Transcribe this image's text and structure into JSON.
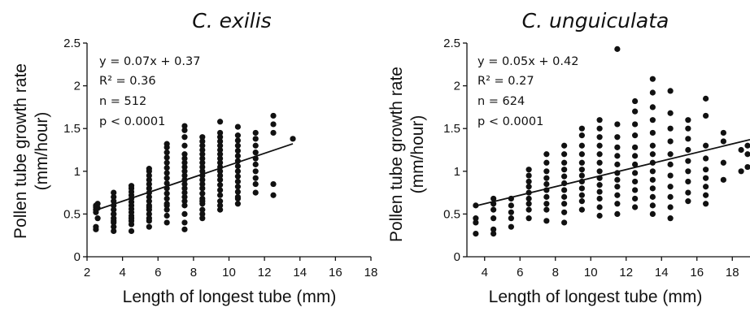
{
  "chart_data": [
    {
      "type": "scatter",
      "title": "C. exilis",
      "xlabel": "Length of longest tube (mm)",
      "ylabel_line1": "Pollen tube growth rate",
      "ylabel_line2": "(mm/hour)",
      "xlim": [
        2,
        18
      ],
      "ylim": [
        0,
        2.5
      ],
      "xticks": [
        2,
        4,
        6,
        8,
        10,
        12,
        14,
        16,
        18
      ],
      "yticks": [
        0,
        0.5,
        1,
        1.5,
        2,
        2.5
      ],
      "xtick_labels": [
        "2",
        "4",
        "6",
        "8",
        "10",
        "12",
        "14",
        "16",
        "18"
      ],
      "ytick_labels": [
        "0",
        "0.5",
        "1",
        "1.5",
        "2",
        "2.5"
      ],
      "annotations": [
        "y = 0.07x  + 0.37",
        "R² = 0.36",
        "n = 512",
        "p < 0.0001"
      ],
      "fit": {
        "slope": 0.07,
        "intercept": 0.37,
        "x_range": [
          2.5,
          13.6
        ]
      },
      "points_summary": {
        "x_min": 2.5,
        "x_max": 13.6,
        "y_min": 0.3,
        "y_max": 1.65
      },
      "series": [
        {
          "x": [
            2.5,
            2.5,
            2.5,
            2.5,
            2.5,
            2.5,
            2.6,
            2.6,
            2.6,
            3.5,
            3.5,
            3.5,
            3.5,
            3.5,
            3.5,
            3.5,
            3.5,
            3.5,
            3.5,
            3.5,
            3.5,
            4.5,
            4.5,
            4.5,
            4.5,
            4.5,
            4.5,
            4.5,
            4.5,
            4.5,
            4.5,
            4.5,
            4.5,
            4.5,
            4.5,
            5.5,
            5.5,
            5.5,
            5.5,
            5.5,
            5.5,
            5.5,
            5.5,
            5.5,
            5.5,
            5.5,
            5.5,
            5.5,
            5.5,
            5.5,
            5.5,
            6.5,
            6.5,
            6.5,
            6.5,
            6.5,
            6.5,
            6.5,
            6.5,
            6.5,
            6.5,
            6.5,
            6.5,
            6.5,
            6.5,
            6.5,
            6.5,
            6.5,
            7.5,
            7.5,
            7.5,
            7.5,
            7.5,
            7.5,
            7.5,
            7.5,
            7.5,
            7.5,
            7.5,
            7.5,
            7.5,
            7.5,
            7.5,
            7.5,
            7.5,
            7.5,
            7.5,
            7.5,
            8.5,
            8.5,
            8.5,
            8.5,
            8.5,
            8.5,
            8.5,
            8.5,
            8.5,
            8.5,
            8.5,
            8.5,
            8.5,
            8.5,
            8.5,
            8.5,
            8.5,
            8.5,
            8.5,
            8.5,
            9.5,
            9.5,
            9.5,
            9.5,
            9.5,
            9.5,
            9.5,
            9.5,
            9.5,
            9.5,
            9.5,
            9.5,
            9.5,
            9.5,
            9.5,
            9.5,
            9.5,
            9.5,
            9.5,
            10.5,
            10.5,
            10.5,
            10.5,
            10.5,
            10.5,
            10.5,
            10.5,
            10.5,
            10.5,
            10.5,
            10.5,
            10.5,
            10.5,
            10.5,
            10.5,
            11.5,
            11.5,
            11.5,
            11.5,
            11.5,
            11.5,
            11.5,
            11.5,
            11.5,
            11.5,
            12.5,
            12.5,
            12.5,
            12.5,
            12.5,
            13.6
          ],
          "y": [
            0.32,
            0.35,
            0.52,
            0.55,
            0.58,
            0.6,
            0.62,
            0.45,
            0.57,
            0.3,
            0.35,
            0.4,
            0.45,
            0.5,
            0.55,
            0.6,
            0.65,
            0.7,
            0.75,
            0.5,
            0.42,
            0.3,
            0.38,
            0.42,
            0.48,
            0.52,
            0.56,
            0.6,
            0.64,
            0.68,
            0.72,
            0.76,
            0.8,
            0.83,
            0.45,
            0.35,
            0.42,
            0.5,
            0.55,
            0.6,
            0.65,
            0.7,
            0.75,
            0.8,
            0.85,
            0.9,
            0.95,
            1.0,
            1.03,
            0.45,
            0.58,
            0.4,
            0.48,
            0.55,
            0.62,
            0.68,
            0.74,
            0.8,
            0.86,
            0.92,
            0.98,
            1.04,
            1.1,
            1.16,
            1.22,
            1.28,
            1.32,
            0.6,
            0.32,
            0.4,
            0.5,
            0.6,
            0.65,
            0.7,
            0.75,
            0.8,
            0.85,
            0.9,
            0.95,
            1.0,
            1.05,
            1.1,
            1.15,
            1.2,
            1.3,
            1.4,
            1.48,
            1.53,
            0.45,
            0.55,
            0.62,
            0.68,
            0.74,
            0.8,
            0.85,
            0.9,
            0.95,
            1.0,
            1.05,
            1.1,
            1.15,
            1.2,
            1.25,
            1.3,
            1.35,
            1.4,
            0.5,
            0.65,
            0.55,
            0.65,
            0.72,
            0.78,
            0.84,
            0.9,
            0.95,
            1.0,
            1.05,
            1.1,
            1.15,
            1.2,
            1.25,
            1.3,
            1.35,
            1.4,
            1.45,
            1.58,
            0.6,
            0.62,
            0.7,
            0.76,
            0.82,
            0.88,
            0.94,
            1.0,
            1.06,
            1.12,
            1.18,
            1.24,
            1.3,
            1.36,
            1.42,
            1.52,
            0.68,
            0.75,
            0.85,
            0.92,
            1.0,
            1.08,
            1.15,
            1.22,
            1.3,
            1.38,
            1.45,
            0.72,
            0.85,
            1.45,
            1.55,
            1.65,
            1.38
          ]
        }
      ]
    },
    {
      "type": "scatter",
      "title": "C. unguiculata",
      "xlabel": "Length of longest tube (mm)",
      "ylabel_line1": "Pollen tube growth rate",
      "ylabel_line2": "(mm/hour)",
      "xlim": [
        3,
        19
      ],
      "ylim": [
        0,
        2.5
      ],
      "xticks": [
        4,
        6,
        8,
        10,
        12,
        14,
        16,
        18
      ],
      "yticks": [
        0,
        0.5,
        1,
        1.5,
        2,
        2.5
      ],
      "xtick_labels": [
        "4",
        "6",
        "8",
        "10",
        "12",
        "14",
        "16",
        "18"
      ],
      "ytick_labels": [
        "0",
        "0.5",
        "1",
        "1.5",
        "2",
        "2.5"
      ],
      "annotations": [
        "y = 0.05x + 0.42",
        "R² = 0.27",
        "n = 624",
        "p < 0.0001"
      ],
      "fit": {
        "slope": 0.05,
        "intercept": 0.42,
        "x_range": [
          3.5,
          19
        ]
      },
      "points_summary": {
        "x_min": 3.5,
        "x_max": 19,
        "y_min": 0.27,
        "y_max": 2.43
      },
      "series": [
        {
          "x": [
            3.5,
            3.5,
            3.5,
            3.5,
            4.5,
            4.5,
            4.5,
            4.5,
            4.5,
            4.5,
            5.5,
            5.5,
            5.5,
            5.5,
            5.5,
            6.5,
            6.5,
            6.5,
            6.5,
            6.5,
            6.5,
            6.5,
            6.5,
            6.5,
            7.5,
            7.5,
            7.5,
            7.5,
            7.5,
            7.5,
            7.5,
            7.5,
            7.5,
            7.5,
            8.5,
            8.5,
            8.5,
            8.5,
            8.5,
            8.5,
            8.5,
            8.5,
            8.5,
            8.5,
            8.5,
            9.5,
            9.5,
            9.5,
            9.5,
            9.5,
            9.5,
            9.5,
            9.5,
            9.5,
            9.5,
            9.5,
            9.5,
            10.5,
            10.5,
            10.5,
            10.5,
            10.5,
            10.5,
            10.5,
            10.5,
            10.5,
            10.5,
            10.5,
            10.5,
            10.5,
            11.5,
            11.5,
            11.5,
            11.5,
            11.5,
            11.5,
            11.5,
            11.5,
            11.5,
            11.5,
            11.5,
            11.5,
            12.5,
            12.5,
            12.5,
            12.5,
            12.5,
            12.5,
            12.5,
            12.5,
            12.5,
            12.5,
            12.5,
            12.5,
            13.5,
            13.5,
            13.5,
            13.5,
            13.5,
            13.5,
            13.5,
            13.5,
            13.5,
            13.5,
            13.5,
            13.5,
            13.5,
            13.5,
            14.5,
            14.5,
            14.5,
            14.5,
            14.5,
            14.5,
            14.5,
            14.5,
            14.5,
            14.5,
            14.5,
            15.5,
            15.5,
            15.5,
            15.5,
            15.5,
            15.5,
            15.5,
            15.5,
            15.5,
            16.5,
            16.5,
            16.5,
            16.5,
            16.5,
            16.5,
            16.5,
            16.5,
            16.5,
            17.5,
            17.5,
            17.5,
            17.5,
            18.5,
            18.5,
            19.0,
            19.0,
            19.0
          ],
          "y": [
            0.27,
            0.4,
            0.45,
            0.6,
            0.27,
            0.32,
            0.45,
            0.55,
            0.62,
            0.68,
            0.35,
            0.45,
            0.52,
            0.6,
            0.68,
            0.45,
            0.55,
            0.62,
            0.68,
            0.75,
            0.82,
            0.88,
            0.95,
            1.02,
            0.42,
            0.55,
            0.62,
            0.7,
            0.78,
            0.85,
            0.92,
            1.0,
            1.1,
            1.2,
            0.4,
            0.52,
            0.62,
            0.7,
            0.78,
            0.86,
            0.94,
            1.02,
            1.1,
            1.2,
            1.3,
            0.55,
            0.65,
            0.72,
            0.8,
            0.88,
            0.95,
            1.02,
            1.1,
            1.2,
            1.3,
            1.42,
            1.5,
            0.48,
            0.58,
            0.68,
            0.76,
            0.84,
            0.92,
            1.0,
            1.1,
            1.2,
            1.3,
            1.4,
            1.5,
            1.6,
            0.5,
            0.62,
            0.72,
            0.82,
            0.9,
            0.98,
            1.08,
            1.18,
            1.28,
            1.4,
            1.55,
            2.43,
            0.58,
            0.68,
            0.78,
            0.88,
            0.98,
            1.08,
            1.18,
            1.28,
            1.42,
            1.55,
            1.7,
            1.82,
            0.5,
            0.6,
            0.7,
            0.8,
            0.9,
            1.0,
            1.1,
            1.2,
            1.3,
            1.45,
            1.6,
            1.75,
            1.92,
            2.08,
            0.45,
            0.58,
            0.7,
            0.82,
            0.95,
            1.08,
            1.2,
            1.35,
            1.5,
            1.68,
            1.94,
            0.65,
            0.75,
            0.88,
            1.0,
            1.12,
            1.25,
            1.38,
            1.5,
            1.6,
            0.62,
            0.72,
            0.82,
            0.92,
            1.02,
            1.15,
            1.3,
            1.65,
            1.85,
            0.9,
            1.1,
            1.35,
            1.45,
            1.0,
            1.25,
            1.05,
            1.2,
            1.3
          ]
        }
      ]
    }
  ]
}
